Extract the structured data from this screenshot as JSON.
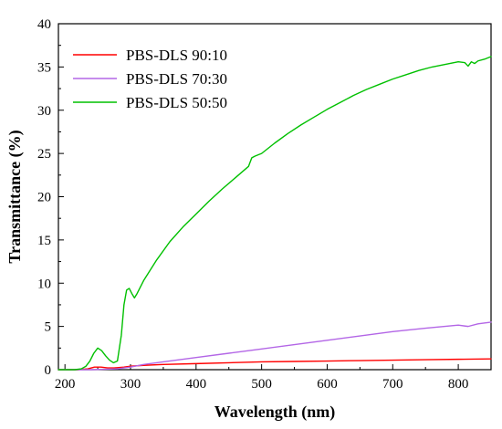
{
  "chart_data": {
    "type": "line",
    "title": "",
    "xlabel": "Wavelength (nm)",
    "ylabel": "Transmittance (%)",
    "xlim": [
      190,
      850
    ],
    "ylim": [
      0,
      40
    ],
    "xticks": [
      200,
      300,
      400,
      500,
      600,
      700,
      800
    ],
    "yticks": [
      0,
      5,
      10,
      15,
      20,
      25,
      30,
      35,
      40
    ],
    "grid": false,
    "legend_position": "top-left",
    "series": [
      {
        "name": "PBS-DLS 90:10",
        "color": "#ff0000",
        "x": [
          190,
          220,
          235,
          245,
          255,
          265,
          275,
          290,
          300,
          320,
          350,
          400,
          450,
          500,
          550,
          600,
          650,
          700,
          750,
          800,
          850
        ],
        "y": [
          0.0,
          0.0,
          0.1,
          0.3,
          0.3,
          0.2,
          0.2,
          0.3,
          0.4,
          0.5,
          0.6,
          0.7,
          0.8,
          0.9,
          0.95,
          1.0,
          1.05,
          1.1,
          1.15,
          1.2,
          1.25
        ]
      },
      {
        "name": "PBS-DLS 70:30",
        "color": "#b366e6",
        "x": [
          190,
          220,
          240,
          260,
          280,
          300,
          320,
          350,
          400,
          450,
          500,
          550,
          600,
          650,
          700,
          750,
          800,
          815,
          830,
          850
        ],
        "y": [
          0.0,
          0.0,
          0.0,
          0.05,
          0.1,
          0.3,
          0.6,
          0.9,
          1.4,
          1.9,
          2.4,
          2.9,
          3.4,
          3.9,
          4.4,
          4.8,
          5.15,
          5.0,
          5.3,
          5.5
        ]
      },
      {
        "name": "PBS-DLS 50:50",
        "color": "#00c000",
        "x": [
          190,
          215,
          225,
          232,
          238,
          244,
          250,
          256,
          262,
          268,
          274,
          280,
          286,
          290,
          294,
          298,
          302,
          306,
          310,
          320,
          340,
          360,
          380,
          400,
          420,
          440,
          460,
          480,
          485,
          490,
          500,
          520,
          540,
          560,
          580,
          600,
          620,
          640,
          660,
          680,
          700,
          720,
          740,
          760,
          780,
          800,
          810,
          815,
          820,
          825,
          830,
          840,
          850
        ],
        "y": [
          0.0,
          0.0,
          0.1,
          0.4,
          1.0,
          1.9,
          2.5,
          2.2,
          1.6,
          1.1,
          0.8,
          1.0,
          4.0,
          7.5,
          9.2,
          9.4,
          8.8,
          8.3,
          8.8,
          10.3,
          12.7,
          14.8,
          16.5,
          18.0,
          19.5,
          20.9,
          22.2,
          23.5,
          24.5,
          24.7,
          25.0,
          26.2,
          27.3,
          28.3,
          29.2,
          30.1,
          30.9,
          31.7,
          32.4,
          33.0,
          33.6,
          34.1,
          34.6,
          35.0,
          35.3,
          35.6,
          35.5,
          35.1,
          35.6,
          35.4,
          35.7,
          35.9,
          36.2
        ]
      }
    ]
  }
}
